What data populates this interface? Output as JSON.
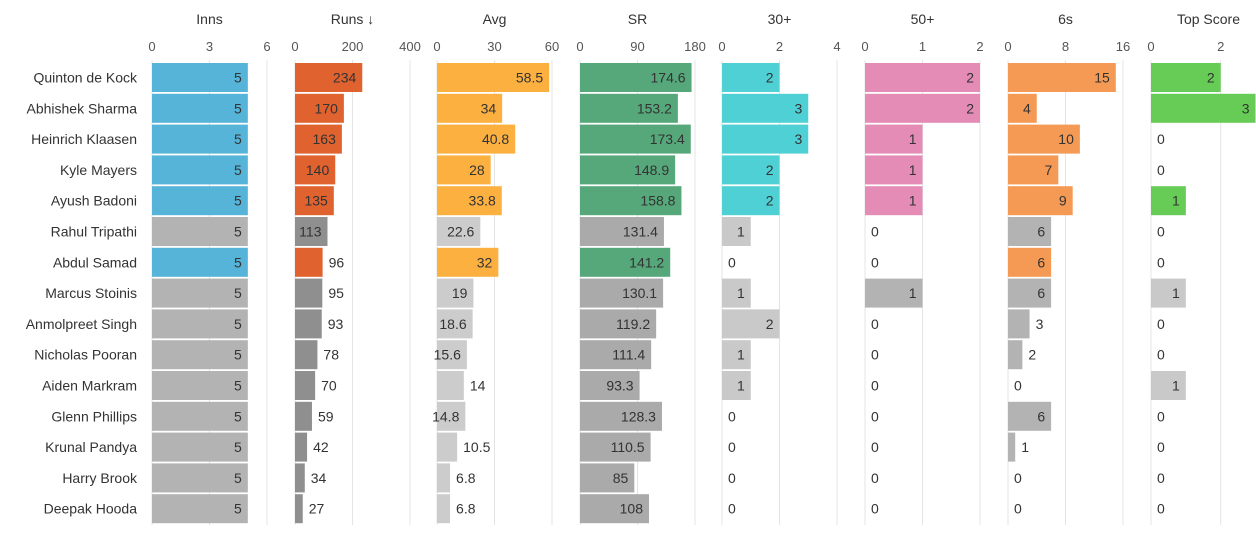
{
  "chart_data": {
    "type": "bar",
    "orientation": "horizontal",
    "layout": "small-multiples",
    "sort": {
      "column": "Runs",
      "direction": "descending",
      "indicator": "↓"
    },
    "players": [
      "Quinton de Kock",
      "Abhishek Sharma",
      "Heinrich Klaasen",
      "Kyle Mayers",
      "Ayush Badoni",
      "Rahul Tripathi",
      "Abdul Samad",
      "Marcus Stoinis",
      "Anmolpreet Singh",
      "Nicholas Pooran",
      "Aiden Markram",
      "Glenn Phillips",
      "Krunal Pandya",
      "Harry Brook",
      "Deepak Hooda"
    ],
    "columns": [
      {
        "name": "Inns",
        "header": "Inns",
        "xlim": [
          0,
          6
        ],
        "ticks": [
          "0",
          "3",
          "6"
        ],
        "color": "#56b4d9",
        "values": [
          5,
          5,
          5,
          5,
          5,
          5,
          5,
          5,
          5,
          5,
          5,
          5,
          5,
          5,
          5
        ],
        "labels": [
          "5",
          "5",
          "5",
          "5",
          "5",
          "5",
          "5",
          "5",
          "5",
          "5",
          "5",
          "5",
          "5",
          "5",
          "5"
        ],
        "highlighted": [
          true,
          true,
          true,
          true,
          true,
          false,
          true,
          false,
          false,
          false,
          false,
          false,
          false,
          false,
          false
        ]
      },
      {
        "name": "Runs",
        "header": "Runs ↓",
        "xlim": [
          0,
          400
        ],
        "ticks": [
          "0",
          "200",
          "400"
        ],
        "color": "#e0622f",
        "values": [
          234,
          170,
          163,
          140,
          135,
          113,
          96,
          95,
          93,
          78,
          70,
          59,
          42,
          34,
          27
        ],
        "labels": [
          "234",
          "170",
          "163",
          "140",
          "135",
          "113",
          "96",
          "95",
          "93",
          "78",
          "70",
          "59",
          "42",
          "34",
          "27"
        ],
        "highlighted": [
          true,
          true,
          true,
          true,
          true,
          false,
          true,
          false,
          false,
          false,
          false,
          false,
          false,
          false,
          false
        ]
      },
      {
        "name": "Avg",
        "header": "Avg",
        "xlim": [
          0,
          60
        ],
        "ticks": [
          "0",
          "30",
          "60"
        ],
        "color": "#fbb040",
        "values": [
          58.5,
          34,
          40.8,
          28,
          33.8,
          22.6,
          32,
          19,
          18.6,
          15.6,
          14,
          14.8,
          10.5,
          6.8,
          6.8
        ],
        "labels": [
          "58.5",
          "34",
          "40.8",
          "28",
          "33.8",
          "22.6",
          "32",
          "19",
          "18.6",
          "15.6",
          "14",
          "14.8",
          "10.5",
          "6.8",
          "6.8"
        ],
        "highlighted": [
          true,
          true,
          true,
          true,
          true,
          false,
          true,
          false,
          false,
          false,
          false,
          false,
          false,
          false,
          false
        ]
      },
      {
        "name": "SR",
        "header": "SR",
        "xlim": [
          0,
          180
        ],
        "ticks": [
          "0",
          "90",
          "180"
        ],
        "color": "#56a87b",
        "values": [
          174.6,
          153.2,
          173.4,
          148.9,
          158.8,
          131.4,
          141.2,
          130.1,
          119.2,
          111.4,
          93.3,
          128.3,
          110.5,
          85,
          108
        ],
        "labels": [
          "174.6",
          "153.2",
          "173.4",
          "148.9",
          "158.8",
          "131.4",
          "141.2",
          "130.1",
          "119.2",
          "111.4",
          "93.3",
          "128.3",
          "110.5",
          "85",
          "108"
        ],
        "highlighted": [
          true,
          true,
          true,
          true,
          true,
          false,
          true,
          false,
          false,
          false,
          false,
          false,
          false,
          false,
          false
        ]
      },
      {
        "name": "30+",
        "header": "30+",
        "xlim": [
          0,
          4
        ],
        "ticks": [
          "0",
          "2",
          "4"
        ],
        "color": "#4fd0d4",
        "values": [
          2,
          3,
          3,
          2,
          2,
          1,
          0,
          1,
          2,
          1,
          1,
          0,
          0,
          0,
          0
        ],
        "labels": [
          "2",
          "3",
          "3",
          "2",
          "2",
          "1",
          "0",
          "1",
          "2",
          "1",
          "1",
          "0",
          "0",
          "0",
          "0"
        ],
        "highlighted": [
          true,
          true,
          true,
          true,
          true,
          false,
          false,
          false,
          false,
          false,
          false,
          false,
          false,
          false,
          false
        ]
      },
      {
        "name": "50+",
        "header": "50+",
        "xlim": [
          0,
          2
        ],
        "ticks": [
          "0",
          "1",
          "2"
        ],
        "color": "#e48bb6",
        "values": [
          2,
          2,
          1,
          1,
          1,
          0,
          0,
          1,
          0,
          0,
          0,
          0,
          0,
          0,
          0
        ],
        "labels": [
          "2",
          "2",
          "1",
          "1",
          "1",
          "0",
          "0",
          "1",
          "0",
          "0",
          "0",
          "0",
          "0",
          "0",
          "0"
        ],
        "highlighted": [
          true,
          true,
          true,
          true,
          true,
          false,
          false,
          false,
          false,
          false,
          false,
          false,
          false,
          false,
          false
        ]
      },
      {
        "name": "6s",
        "header": "6s",
        "xlim": [
          0,
          16
        ],
        "ticks": [
          "0",
          "8",
          "16"
        ],
        "color": "#f49a55",
        "values": [
          15,
          4,
          10,
          7,
          9,
          6,
          6,
          6,
          3,
          2,
          0,
          6,
          1,
          0,
          0
        ],
        "labels": [
          "15",
          "4",
          "10",
          "7",
          "9",
          "6",
          "6",
          "6",
          "3",
          "2",
          "0",
          "6",
          "1",
          "0",
          "0"
        ],
        "highlighted": [
          true,
          true,
          true,
          true,
          true,
          false,
          true,
          false,
          false,
          false,
          false,
          false,
          false,
          false,
          false
        ]
      },
      {
        "name": "Top Score",
        "header": "Top Score",
        "xlim": [
          0,
          2
        ],
        "ticks": [
          "0",
          "2"
        ],
        "color": "#66cc55",
        "values": [
          2,
          3,
          0,
          0,
          1,
          0,
          0,
          1,
          0,
          0,
          1,
          0,
          0,
          0,
          0
        ],
        "labels": [
          "2",
          "3",
          "0",
          "0",
          "1",
          "0",
          "0",
          "1",
          "0",
          "0",
          "1",
          "0",
          "0",
          "0",
          "0"
        ],
        "highlighted": [
          true,
          true,
          false,
          false,
          true,
          false,
          false,
          false,
          false,
          false,
          false,
          false,
          false,
          false,
          false
        ]
      }
    ]
  },
  "colors": {
    "muted_bar": "#b3b3b3",
    "runs_muted": "#8f8f8f",
    "avg_muted": "#cccccc",
    "sr_muted": "#aaaaaa",
    "pale_muted": "#c9c9c9",
    "grid": "#e4e4e4",
    "text": "#333333"
  }
}
